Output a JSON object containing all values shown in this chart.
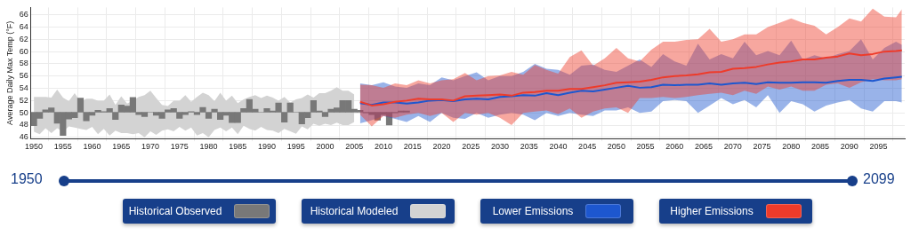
{
  "chart_data": {
    "type": "line",
    "ylabel": "Average Daily Max Temp (°F)",
    "xlim": [
      1949.5,
      2099.5
    ],
    "xticks": [
      1950,
      1955,
      1960,
      1965,
      1970,
      1975,
      1980,
      1985,
      1990,
      1995,
      2000,
      2005,
      2010,
      2015,
      2020,
      2025,
      2030,
      2035,
      2040,
      2045,
      2050,
      2055,
      2060,
      2065,
      2070,
      2075,
      2080,
      2085,
      2090,
      2095
    ],
    "ylim": [
      45.8,
      67.2
    ],
    "yticks": [
      46,
      48,
      50,
      52,
      54,
      56,
      58,
      60,
      62,
      64,
      66
    ],
    "grid": true,
    "legend": "bottom",
    "annotations": [
      "1950",
      "2099"
    ],
    "series": [
      {
        "name": "Historical Modeled",
        "type": "area",
        "color": "#d3d3d3",
        "values": [
          null,
          null,
          null,
          null,
          null,
          null,
          null,
          null,
          null,
          null,
          null,
          null,
          null,
          null,
          null,
          null,
          null,
          null,
          null,
          null,
          null,
          null,
          null,
          null,
          null,
          null,
          null,
          null,
          null,
          null,
          null,
          null,
          null,
          null,
          null,
          null,
          null,
          null,
          null,
          null,
          null,
          null,
          null,
          null,
          null,
          null,
          null,
          null,
          null,
          null,
          null,
          null,
          null,
          null,
          null,
          null
        ],
        "x": [
          1950,
          1951,
          1952,
          1953,
          1954,
          1955,
          1956,
          1957,
          1958,
          1959,
          1960,
          1961,
          1962,
          1963,
          1964,
          1965,
          1966,
          1967,
          1968,
          1969,
          1970,
          1971,
          1972,
          1973,
          1974,
          1975,
          1976,
          1977,
          1978,
          1979,
          1980,
          1981,
          1982,
          1983,
          1984,
          1985,
          1986,
          1987,
          1988,
          1989,
          1990,
          1991,
          1992,
          1993,
          1994,
          1995,
          1996,
          1997,
          1998,
          1999,
          2000,
          2001,
          2002,
          2003,
          2004,
          2005
        ],
        "upper": [
          52.6,
          52.6,
          52.6,
          52.5,
          53.8,
          52.5,
          51.9,
          53.2,
          51.8,
          52.3,
          52.3,
          52.0,
          52.0,
          53.0,
          51.3,
          52.7,
          51.5,
          52.0,
          52.6,
          52.9,
          53.6,
          52.4,
          51.3,
          51.1,
          52.0,
          52.0,
          52.9,
          51.8,
          52.6,
          53.3,
          52.9,
          51.9,
          53.3,
          52.0,
          52.8,
          51.6,
          52.2,
          52.6,
          52.9,
          52.4,
          52.8,
          52.5,
          52.0,
          52.6,
          51.7,
          52.2,
          52.4,
          53.0,
          52.5,
          53.2,
          53.2,
          53.6,
          54.2,
          53.6,
          53.6,
          53.0
        ],
        "lower": [
          46.9,
          46.5,
          47.5,
          46.7,
          47.5,
          46.9,
          47.8,
          47.6,
          47.4,
          47.2,
          47.7,
          46.5,
          47.4,
          46.3,
          47.1,
          46.7,
          46.7,
          46.5,
          46.7,
          46.0,
          47.0,
          46.4,
          47.1,
          47.3,
          47.0,
          47.7,
          47.1,
          47.6,
          46.3,
          46.7,
          46.0,
          47.2,
          47.6,
          47.0,
          47.6,
          46.5,
          47.9,
          47.4,
          47.1,
          47.7,
          47.2,
          47.1,
          46.7,
          47.4,
          47.0,
          46.6,
          47.8,
          47.3,
          48.2,
          47.9,
          48.2,
          48.0,
          48.4,
          48.0,
          48.0,
          48.5
        ]
      },
      {
        "name": "Historical Observed",
        "type": "bar",
        "color": "#787878",
        "x": [
          1950,
          1951,
          1952,
          1953,
          1954,
          1955,
          1956,
          1957,
          1958,
          1959,
          1960,
          1961,
          1962,
          1963,
          1964,
          1965,
          1966,
          1967,
          1968,
          1969,
          1970,
          1971,
          1972,
          1973,
          1974,
          1975,
          1976,
          1977,
          1978,
          1979,
          1980,
          1981,
          1982,
          1983,
          1984,
          1985,
          1986,
          1987,
          1988,
          1989,
          1990,
          1991,
          1992,
          1993,
          1994,
          1995,
          1996,
          1997,
          1998,
          1999,
          2000,
          2001,
          2002,
          2003,
          2004,
          2005,
          2006,
          2007,
          2008,
          2009,
          2010,
          2011,
          2012,
          2013,
          2014
        ],
        "base": [
          50.1,
          50.1,
          50.1,
          50.1,
          50.1,
          50.1,
          50.1,
          50.1,
          50.1,
          50.1,
          50.1,
          50.1,
          50.1,
          50.1,
          50.1,
          50.1,
          50.1,
          50.1,
          50.1,
          50.1,
          50.1,
          50.1,
          50.1,
          50.1,
          50.1,
          50.1,
          50.1,
          50.1,
          50.1,
          50.1,
          50.1,
          50.1,
          50.1,
          50.1,
          50.1,
          50.1,
          50.1,
          50.1,
          50.1,
          50.1,
          50.1,
          50.1,
          50.1,
          50.1,
          50.1,
          50.1,
          50.1,
          50.1,
          50.1,
          50.1,
          50.1,
          50.1,
          50.1,
          50.1,
          50.1,
          50.1,
          50.1,
          50.1,
          50.1,
          50.1,
          50.1,
          50.1,
          50.1,
          50.1,
          50.1
        ],
        "values": [
          -2.2,
          -1.0,
          0.4,
          0.7,
          -1.8,
          -3.8,
          -1.1,
          -0.9,
          2.3,
          -1.4,
          -0.5,
          0.3,
          0.1,
          0.6,
          -1.2,
          1.2,
          1.0,
          2.4,
          -0.4,
          -0.7,
          0.0,
          -0.5,
          -1.0,
          0.4,
          0.6,
          -1.0,
          -0.4,
          0.1,
          -0.4,
          0.8,
          -1.0,
          0.5,
          -1.2,
          -0.5,
          -1.7,
          -1.7,
          0.6,
          2.1,
          0.5,
          0.0,
          0.6,
          0.2,
          1.5,
          -1.6,
          1.5,
          0.0,
          -1.9,
          -0.9,
          1.9,
          0.2,
          -0.7,
          0.5,
          0.7,
          1.9,
          1.9,
          0.5,
          0.3,
          -0.1,
          -0.4,
          -1.3,
          -0.4,
          -2.1,
          -0.1,
          0.2,
          0.2
        ]
      },
      {
        "name": "Lower Emissions",
        "color": "#1d57cf",
        "x": [
          2006,
          2008,
          2010,
          2012,
          2014,
          2016,
          2018,
          2020,
          2022,
          2024,
          2026,
          2028,
          2030,
          2032,
          2034,
          2036,
          2038,
          2040,
          2042,
          2044,
          2046,
          2048,
          2050,
          2052,
          2054,
          2056,
          2058,
          2060,
          2062,
          2064,
          2066,
          2068,
          2070,
          2072,
          2074,
          2076,
          2078,
          2080,
          2082,
          2084,
          2086,
          2088,
          2090,
          2092,
          2094,
          2096,
          2098,
          2099
        ],
        "values": [
          51.6,
          51.3,
          51.7,
          51.7,
          51.5,
          51.7,
          52.0,
          52.1,
          51.9,
          52.2,
          52.3,
          52.2,
          52.6,
          52.7,
          52.9,
          52.8,
          53.2,
          52.9,
          53.3,
          53.6,
          53.5,
          53.8,
          54.1,
          54.4,
          54.1,
          54.2,
          54.6,
          54.5,
          54.6,
          54.6,
          54.8,
          54.6,
          54.8,
          54.9,
          54.7,
          55.0,
          54.9,
          54.9,
          55.0,
          55.0,
          54.9,
          55.2,
          55.4,
          55.4,
          55.2,
          55.6,
          55.8,
          55.9
        ],
        "upper": [
          54.8,
          54.5,
          55.0,
          54.3,
          54.1,
          54.8,
          54.5,
          55.8,
          55.3,
          56.0,
          56.6,
          55.3,
          56.0,
          56.0,
          56.7,
          58.0,
          57.2,
          57.0,
          56.2,
          57.7,
          57.9,
          57.0,
          56.7,
          57.7,
          58.7,
          57.5,
          59.6,
          58.4,
          57.7,
          61.3,
          58.7,
          59.6,
          58.9,
          61.6,
          59.4,
          60.1,
          59.4,
          61.8,
          58.7,
          59.4,
          58.9,
          59.6,
          60.1,
          62.0,
          58.7,
          60.6,
          61.6,
          61.1
        ],
        "lower": [
          48.3,
          48.8,
          49.5,
          49.0,
          48.5,
          49.5,
          48.5,
          50.0,
          49.2,
          49.0,
          50.0,
          49.2,
          49.7,
          50.0,
          49.7,
          48.8,
          50.0,
          49.5,
          50.0,
          49.7,
          49.5,
          50.4,
          50.4,
          50.9,
          50.0,
          50.2,
          51.9,
          52.1,
          51.9,
          50.0,
          51.2,
          52.4,
          51.4,
          52.1,
          50.9,
          52.9,
          50.0,
          51.9,
          51.4,
          50.2,
          51.2,
          51.7,
          52.1,
          50.7,
          50.2,
          51.9,
          51.9,
          51.7
        ]
      },
      {
        "name": "Higher Emissions",
        "color": "#ee3b2a",
        "x": [
          2006,
          2008,
          2010,
          2012,
          2014,
          2016,
          2018,
          2020,
          2022,
          2024,
          2026,
          2028,
          2030,
          2032,
          2034,
          2036,
          2038,
          2040,
          2042,
          2044,
          2046,
          2048,
          2050,
          2052,
          2054,
          2056,
          2058,
          2060,
          2062,
          2064,
          2066,
          2068,
          2070,
          2072,
          2074,
          2076,
          2078,
          2080,
          2082,
          2084,
          2086,
          2088,
          2090,
          2092,
          2094,
          2096,
          2098,
          2099
        ],
        "values": [
          51.8,
          51.2,
          51.4,
          51.8,
          52.0,
          52.3,
          52.2,
          52.2,
          52.0,
          52.7,
          52.8,
          52.9,
          53.0,
          52.8,
          53.3,
          53.4,
          53.6,
          53.6,
          53.9,
          53.9,
          54.2,
          54.5,
          54.9,
          55.0,
          55.1,
          55.4,
          55.8,
          56.0,
          56.1,
          56.3,
          56.6,
          56.7,
          57.2,
          57.3,
          57.5,
          57.9,
          58.2,
          58.4,
          58.7,
          58.7,
          59.0,
          59.2,
          59.7,
          59.4,
          59.6,
          60.0,
          60.1,
          60.2
        ],
        "upper": [
          54.6,
          54.5,
          54.1,
          54.8,
          54.5,
          55.3,
          54.8,
          55.3,
          55.5,
          56.5,
          55.3,
          56.0,
          56.1,
          56.7,
          56.2,
          57.8,
          57.0,
          56.4,
          59.1,
          60.2,
          57.7,
          58.9,
          60.6,
          58.9,
          58.4,
          60.3,
          61.6,
          61.6,
          61.9,
          62.0,
          63.7,
          61.6,
          62.0,
          62.8,
          62.8,
          64.0,
          64.7,
          65.4,
          64.7,
          64.2,
          62.8,
          64.0,
          65.4,
          64.9,
          67.0,
          65.7,
          65.6,
          66.9
        ],
        "lower": [
          49.7,
          47.8,
          49.5,
          49.2,
          49.7,
          50.0,
          49.5,
          50.0,
          48.5,
          50.0,
          49.7,
          50.0,
          49.2,
          48.0,
          50.0,
          50.2,
          50.4,
          49.8,
          50.7,
          49.2,
          50.2,
          50.7,
          50.9,
          50.0,
          52.4,
          52.4,
          52.6,
          52.4,
          52.6,
          52.9,
          53.1,
          53.3,
          52.9,
          53.6,
          53.1,
          54.3,
          53.8,
          54.3,
          53.6,
          53.6,
          54.6,
          54.8,
          54.1,
          55.0,
          55.5,
          55.3,
          55.3,
          55.5
        ]
      }
    ]
  }
}
